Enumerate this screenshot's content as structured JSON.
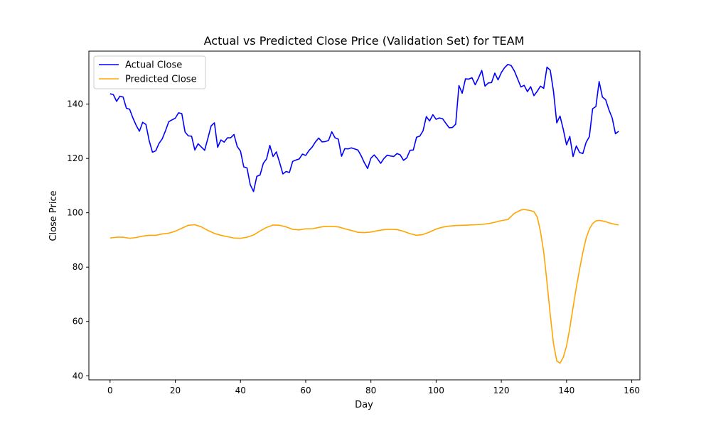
{
  "chart_data": {
    "type": "line",
    "title": "Actual vs Predicted Close Price (Validation Set) for TEAM",
    "xlabel": "Day",
    "ylabel": "Close Price",
    "xlim": [
      -6.5,
      162.5
    ],
    "ylim": [
      38.5,
      159.5
    ],
    "xticks": [
      0,
      20,
      40,
      60,
      80,
      100,
      120,
      140,
      160
    ],
    "yticks": [
      40,
      60,
      80,
      100,
      120,
      140
    ],
    "grid": false,
    "legend_position": "upper left",
    "series": [
      {
        "name": "Actual Close",
        "color": "#0000ff",
        "x": [
          0,
          1,
          2,
          3,
          4,
          5,
          6,
          7,
          8,
          9,
          10,
          11,
          12,
          13,
          14,
          15,
          16,
          17,
          18,
          19,
          20,
          21,
          22,
          23,
          24,
          25,
          26,
          27,
          28,
          29,
          30,
          31,
          32,
          33,
          34,
          35,
          36,
          37,
          38,
          39,
          40,
          41,
          42,
          43,
          44,
          45,
          46,
          47,
          48,
          49,
          50,
          51,
          52,
          53,
          54,
          55,
          56,
          57,
          58,
          59,
          60,
          61,
          62,
          63,
          64,
          65,
          66,
          67,
          68,
          69,
          70,
          71,
          72,
          73,
          74,
          75,
          76,
          77,
          78,
          79,
          80,
          81,
          82,
          83,
          84,
          85,
          86,
          87,
          88,
          89,
          90,
          91,
          92,
          93,
          94,
          95,
          96,
          97,
          98,
          99,
          100,
          101,
          102,
          103,
          104,
          105,
          106,
          107,
          108,
          109,
          110,
          111,
          112,
          113,
          114,
          115,
          116,
          117,
          118,
          119,
          120,
          121,
          122,
          123,
          124,
          125,
          126,
          127,
          128,
          129,
          130,
          131,
          132,
          133,
          134,
          135,
          136,
          137,
          138,
          139,
          140,
          141,
          142,
          143,
          144,
          145,
          146,
          147,
          148,
          149,
          150,
          151,
          152,
          153,
          154,
          155,
          156
        ],
        "values": [
          143.8,
          143.5,
          141.0,
          142.9,
          142.6,
          138.5,
          138.1,
          134.9,
          132.2,
          130.0,
          133.3,
          132.5,
          126.5,
          122.3,
          122.8,
          125.5,
          127.2,
          130.2,
          133.5,
          134.2,
          134.8,
          136.8,
          136.5,
          129.7,
          128.3,
          128.2,
          123.1,
          125.4,
          124.2,
          123.0,
          127.4,
          132.0,
          133.1,
          124.1,
          126.8,
          126.0,
          127.6,
          127.6,
          128.8,
          124.4,
          122.7,
          116.9,
          116.5,
          110.3,
          107.8,
          113.4,
          113.9,
          118.2,
          119.8,
          124.8,
          120.7,
          122.4,
          118.5,
          114.3,
          115.2,
          114.8,
          118.9,
          119.4,
          119.8,
          121.6,
          121.1,
          122.9,
          124.2,
          126.1,
          127.5,
          126.1,
          126.2,
          126.6,
          129.8,
          127.6,
          127.1,
          120.8,
          123.6,
          123.5,
          123.9,
          123.5,
          123.1,
          121.0,
          118.4,
          116.3,
          120.1,
          121.3,
          119.9,
          118.2,
          120.0,
          121.2,
          120.9,
          120.7,
          121.8,
          121.3,
          119.3,
          120.2,
          123.0,
          123.1,
          127.8,
          128.2,
          130.2,
          135.4,
          133.8,
          136.1,
          134.4,
          134.9,
          134.6,
          132.9,
          131.3,
          131.4,
          132.6,
          146.8,
          144.0,
          149.3,
          149.2,
          149.7,
          147.1,
          149.6,
          152.4,
          146.6,
          147.8,
          147.9,
          151.4,
          148.9,
          151.6,
          153.4,
          154.6,
          154.2,
          152.2,
          149.3,
          146.3,
          146.9,
          144.6,
          146.4,
          143.1,
          144.7,
          146.6,
          145.8,
          153.6,
          152.5,
          144.7,
          133.1,
          135.6,
          130.7,
          125.0,
          128.1,
          120.7,
          124.6,
          122.2,
          121.8,
          125.9,
          128.0,
          138.3,
          139.1,
          148.3,
          142.6,
          141.6,
          137.9,
          134.9,
          129.1,
          130.0
        ]
      },
      {
        "name": "Predicted Close",
        "color": "#ffa500",
        "x": [
          0,
          2,
          4,
          6,
          8,
          10,
          12,
          14,
          16,
          18,
          20,
          22,
          24,
          26,
          28,
          30,
          32,
          34,
          36,
          38,
          40,
          42,
          44,
          46,
          48,
          50,
          52,
          54,
          56,
          58,
          60,
          62,
          64,
          66,
          68,
          70,
          72,
          74,
          76,
          78,
          80,
          82,
          84,
          86,
          88,
          90,
          92,
          94,
          96,
          98,
          100,
          102,
          104,
          106,
          108,
          110,
          112,
          114,
          116,
          118,
          120,
          122,
          124,
          126,
          127,
          128,
          129,
          130,
          131,
          132,
          133,
          134,
          135,
          136,
          137,
          138,
          139,
          140,
          141,
          142,
          143,
          144,
          145,
          146,
          147,
          148,
          149,
          150,
          151,
          152,
          153,
          154,
          155,
          156
        ],
        "values": [
          90.7,
          91.0,
          91.0,
          90.6,
          90.9,
          91.4,
          91.7,
          91.7,
          92.2,
          92.5,
          93.2,
          94.3,
          95.4,
          95.6,
          94.8,
          93.5,
          92.4,
          91.7,
          91.2,
          90.7,
          90.6,
          91.0,
          91.8,
          93.3,
          94.6,
          95.5,
          95.4,
          94.8,
          93.9,
          93.7,
          94.1,
          94.1,
          94.6,
          95.0,
          95.0,
          94.8,
          94.1,
          93.5,
          92.8,
          92.7,
          92.9,
          93.4,
          93.8,
          93.9,
          93.8,
          93.2,
          92.3,
          91.7,
          92.0,
          92.9,
          94.0,
          94.7,
          95.1,
          95.3,
          95.4,
          95.5,
          95.6,
          95.7,
          96.0,
          96.5,
          97.1,
          97.5,
          99.8,
          101.0,
          101.2,
          101.0,
          100.8,
          100.4,
          98.5,
          93.2,
          85.5,
          74.5,
          62.5,
          51.8,
          45.5,
          44.6,
          46.8,
          51.0,
          57.5,
          65.2,
          72.5,
          79.2,
          85.4,
          90.6,
          94.0,
          96.0,
          97.0,
          97.2,
          97.0,
          96.7,
          96.3,
          96.0,
          95.7,
          95.5
        ]
      }
    ]
  }
}
